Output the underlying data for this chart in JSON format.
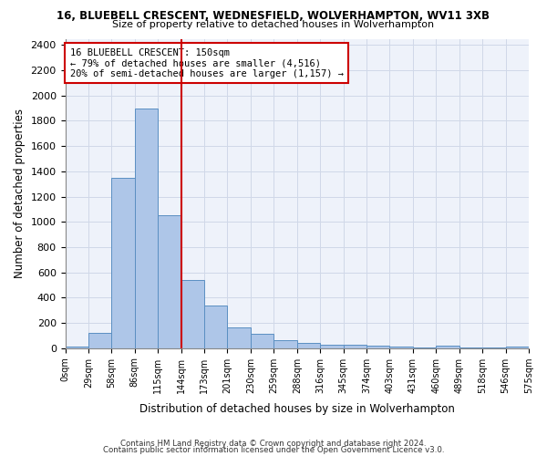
{
  "title": "16, BLUEBELL CRESCENT, WEDNESFIELD, WOLVERHAMPTON, WV11 3XB",
  "subtitle": "Size of property relative to detached houses in Wolverhampton",
  "xlabel": "Distribution of detached houses by size in Wolverhampton",
  "ylabel": "Number of detached properties",
  "annotation_line1": "16 BLUEBELL CRESCENT: 150sqm",
  "annotation_line2": "← 79% of detached houses are smaller (4,516)",
  "annotation_line3": "20% of semi-detached houses are larger (1,157) →",
  "footer1": "Contains HM Land Registry data © Crown copyright and database right 2024.",
  "footer2": "Contains public sector information licensed under the Open Government Licence v3.0.",
  "bar_color": "#aec6e8",
  "bar_edgecolor": "#5a8fc2",
  "highlight_color": "#cc0000",
  "background_color": "#eef2fa",
  "grid_color": "#d0d8e8",
  "tick_labels": [
    "0sqm",
    "29sqm",
    "58sqm",
    "86sqm",
    "115sqm",
    "144sqm",
    "173sqm",
    "201sqm",
    "230sqm",
    "259sqm",
    "288sqm",
    "316sqm",
    "345sqm",
    "374sqm",
    "403sqm",
    "431sqm",
    "460sqm",
    "489sqm",
    "518sqm",
    "546sqm",
    "575sqm"
  ],
  "bar_values": [
    15,
    120,
    1350,
    1900,
    1050,
    540,
    335,
    165,
    110,
    65,
    40,
    30,
    25,
    20,
    15,
    5,
    20,
    5,
    5,
    15
  ],
  "vline_position": 5,
  "ylim": [
    0,
    2450
  ],
  "yticks": [
    0,
    200,
    400,
    600,
    800,
    1000,
    1200,
    1400,
    1600,
    1800,
    2000,
    2200,
    2400
  ]
}
